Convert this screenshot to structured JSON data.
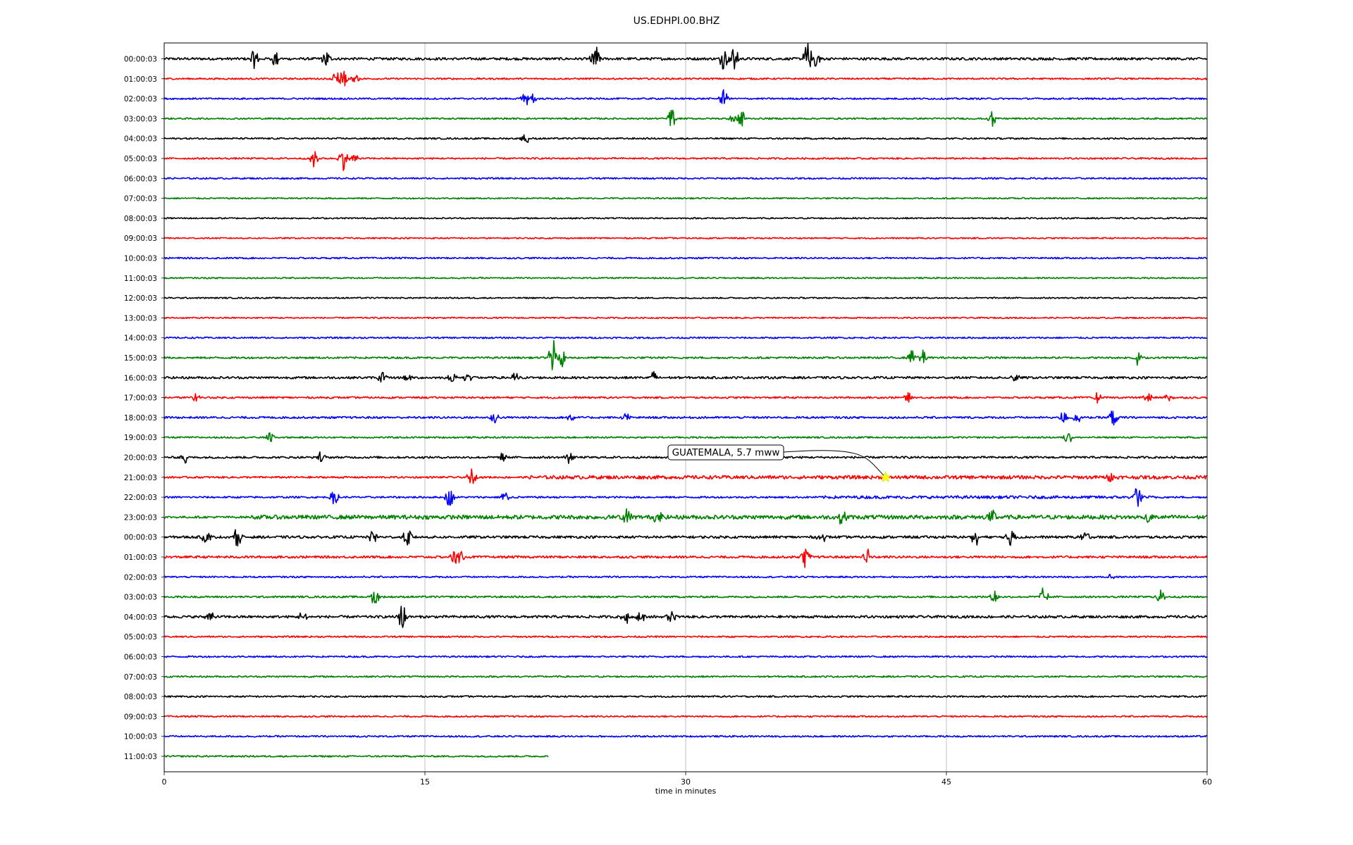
{
  "chart_data": {
    "type": "line",
    "title": "US.EDHPI.00.BHZ",
    "xlabel": "time in minutes",
    "ylabel": "",
    "xlim": [
      0,
      60
    ],
    "xticks": [
      0,
      15,
      30,
      45,
      60
    ],
    "grid": "vertical",
    "color_cycle": [
      "#000000",
      "#ff0000",
      "#0000ff",
      "#008000"
    ],
    "rows": [
      {
        "label": "00:00:03",
        "end": 60,
        "noise": 0.55,
        "bursts": [
          [
            5.2,
            2.2
          ],
          [
            6.4,
            2.0
          ],
          [
            9.3,
            2.2
          ],
          [
            24.8,
            3.5
          ],
          [
            32.2,
            2.5
          ],
          [
            32.8,
            3.0
          ],
          [
            37.0,
            4.0
          ],
          [
            37.5,
            2.4
          ]
        ]
      },
      {
        "label": "01:00:03",
        "end": 60,
        "noise": 0.35,
        "bursts": [
          [
            9.9,
            1.8
          ],
          [
            10.3,
            2.2
          ],
          [
            11.0,
            1.0
          ]
        ]
      },
      {
        "label": "02:00:03",
        "end": 60,
        "noise": 0.35,
        "bursts": [
          [
            20.8,
            2.0
          ],
          [
            21.2,
            1.2
          ],
          [
            32.2,
            2.0
          ]
        ]
      },
      {
        "label": "03:00:03",
        "end": 60,
        "noise": 0.35,
        "bursts": [
          [
            29.2,
            2.4
          ],
          [
            32.8,
            1.6
          ],
          [
            33.2,
            2.2
          ],
          [
            47.6,
            2.0
          ]
        ]
      },
      {
        "label": "04:00:03",
        "end": 60,
        "noise": 0.35,
        "bursts": [
          [
            20.8,
            1.6
          ]
        ]
      },
      {
        "label": "05:00:03",
        "end": 60,
        "noise": 0.35,
        "bursts": [
          [
            8.6,
            2.2
          ],
          [
            10.3,
            2.6
          ],
          [
            10.9,
            1.4
          ]
        ]
      },
      {
        "label": "06:00:03",
        "end": 60,
        "noise": 0.35,
        "bursts": []
      },
      {
        "label": "07:00:03",
        "end": 60,
        "noise": 0.3,
        "bursts": []
      },
      {
        "label": "08:00:03",
        "end": 60,
        "noise": 0.3,
        "bursts": []
      },
      {
        "label": "09:00:03",
        "end": 60,
        "noise": 0.3,
        "bursts": []
      },
      {
        "label": "10:00:03",
        "end": 60,
        "noise": 0.35,
        "bursts": []
      },
      {
        "label": "11:00:03",
        "end": 60,
        "noise": 0.3,
        "bursts": []
      },
      {
        "label": "12:00:03",
        "end": 60,
        "noise": 0.3,
        "bursts": []
      },
      {
        "label": "13:00:03",
        "end": 60,
        "noise": 0.3,
        "bursts": []
      },
      {
        "label": "14:00:03",
        "end": 60,
        "noise": 0.35,
        "bursts": []
      },
      {
        "label": "15:00:03",
        "end": 60,
        "noise": 0.4,
        "bursts": [
          [
            22.4,
            5.0
          ],
          [
            22.9,
            2.0
          ],
          [
            43.0,
            2.0
          ],
          [
            43.6,
            2.0
          ],
          [
            56.0,
            1.6
          ]
        ]
      },
      {
        "label": "16:00:03",
        "end": 60,
        "noise": 0.5,
        "bursts": [
          [
            12.5,
            1.6
          ],
          [
            14.0,
            1.2
          ],
          [
            16.6,
            1.2
          ],
          [
            17.5,
            1.4
          ],
          [
            20.2,
            1.2
          ],
          [
            28.2,
            1.5
          ],
          [
            48.9,
            1.2
          ]
        ]
      },
      {
        "label": "17:00:03",
        "end": 60,
        "noise": 0.4,
        "bursts": [
          [
            1.8,
            1.0
          ],
          [
            42.8,
            1.0
          ],
          [
            53.7,
            1.4
          ],
          [
            56.6,
            1.4
          ],
          [
            57.8,
            1.0
          ]
        ]
      },
      {
        "label": "18:00:03",
        "end": 60,
        "noise": 0.45,
        "bursts": [
          [
            19.0,
            1.6
          ],
          [
            23.4,
            1.2
          ],
          [
            26.6,
            1.2
          ],
          [
            51.7,
            1.8
          ],
          [
            52.5,
            1.4
          ],
          [
            54.6,
            2.2
          ]
        ]
      },
      {
        "label": "19:00:03",
        "end": 60,
        "noise": 0.35,
        "bursts": [
          [
            6.1,
            1.2
          ],
          [
            52.0,
            1.4
          ]
        ]
      },
      {
        "label": "20:00:03",
        "end": 60,
        "noise": 0.45,
        "bursts": [
          [
            1.2,
            1.4
          ],
          [
            9.0,
            1.2
          ],
          [
            19.5,
            1.2
          ],
          [
            23.3,
            1.4
          ]
        ]
      },
      {
        "label": "21:00:03",
        "end": 60,
        "noise": 0.4,
        "bursts": [
          [
            17.7,
            2.0
          ],
          [
            54.5,
            1.2
          ]
        ],
        "band": [
          21.0,
          60.0,
          1.9
        ]
      },
      {
        "label": "22:00:03",
        "end": 60,
        "noise": 0.4,
        "bursts": [
          [
            9.8,
            1.8
          ],
          [
            16.4,
            2.4
          ],
          [
            19.6,
            1.5
          ],
          [
            56.0,
            3.0
          ]
        ],
        "band": [
          37.8,
          57.2,
          1.6
        ]
      },
      {
        "label": "23:00:03",
        "end": 60,
        "noise": 0.45,
        "bursts": [
          [
            26.6,
            2.0
          ],
          [
            28.4,
            1.6
          ],
          [
            39.0,
            1.8
          ],
          [
            47.6,
            1.8
          ],
          [
            56.6,
            1.8
          ]
        ],
        "band": [
          5.0,
          60.0,
          2.0
        ]
      },
      {
        "label": "00:00:03",
        "end": 60,
        "noise": 0.55,
        "bursts": [
          [
            2.4,
            1.6
          ],
          [
            4.2,
            2.2
          ],
          [
            12.0,
            1.6
          ],
          [
            14.0,
            2.2
          ],
          [
            37.8,
            1.6
          ],
          [
            46.7,
            2.2
          ],
          [
            48.7,
            2.0
          ],
          [
            53.0,
            1.4
          ]
        ]
      },
      {
        "label": "01:00:03",
        "end": 60,
        "noise": 0.5,
        "bursts": [
          [
            16.7,
            1.6
          ],
          [
            17.0,
            1.4
          ],
          [
            36.9,
            2.8
          ],
          [
            40.4,
            2.8
          ]
        ]
      },
      {
        "label": "02:00:03",
        "end": 60,
        "noise": 0.35,
        "bursts": [
          [
            54.5,
            1.0
          ]
        ]
      },
      {
        "label": "03:00:03",
        "end": 60,
        "noise": 0.4,
        "bursts": [
          [
            12.1,
            2.0
          ],
          [
            47.8,
            1.6
          ],
          [
            50.6,
            2.2
          ],
          [
            57.3,
            2.0
          ]
        ]
      },
      {
        "label": "04:00:03",
        "end": 60,
        "noise": 0.55,
        "bursts": [
          [
            2.6,
            1.6
          ],
          [
            8.0,
            1.8
          ],
          [
            13.7,
            3.5
          ],
          [
            26.5,
            2.0
          ],
          [
            27.4,
            1.6
          ],
          [
            29.2,
            1.8
          ]
        ]
      },
      {
        "label": "05:00:03",
        "end": 60,
        "noise": 0.35,
        "bursts": []
      },
      {
        "label": "06:00:03",
        "end": 60,
        "noise": 0.35,
        "bursts": []
      },
      {
        "label": "07:00:03",
        "end": 60,
        "noise": 0.35,
        "bursts": []
      },
      {
        "label": "08:00:03",
        "end": 60,
        "noise": 0.35,
        "bursts": []
      },
      {
        "label": "09:00:03",
        "end": 60,
        "noise": 0.35,
        "bursts": []
      },
      {
        "label": "10:00:03",
        "end": 60,
        "noise": 0.35,
        "bursts": []
      },
      {
        "label": "11:00:03",
        "end": 22.1,
        "noise": 0.35,
        "bursts": []
      }
    ],
    "event": {
      "label": "GUATEMALA, 5.7 mww",
      "row": 21,
      "minute": 41.5,
      "marker": "star",
      "marker_color": "#ffff00"
    }
  }
}
